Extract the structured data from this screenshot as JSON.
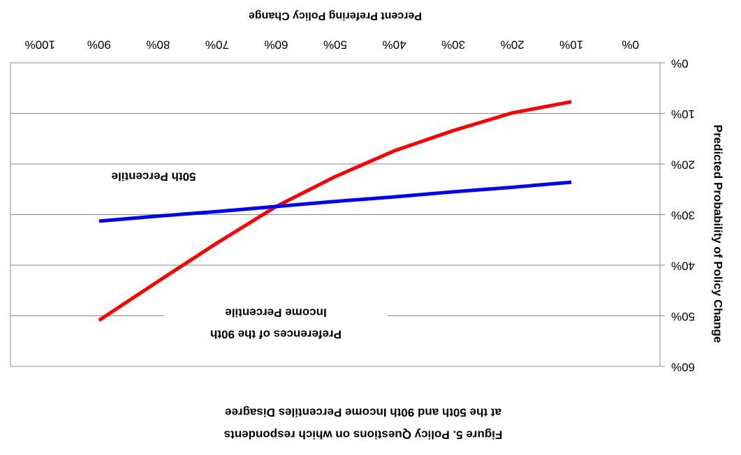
{
  "chart_data": {
    "type": "line",
    "title": [
      "Figure 5.  Policy Questions on which respondents",
      "at the 50th and 90th Income Percentiles Disagree"
    ],
    "x_label": "Percent Prefering Policy Change",
    "y_label": "Predicted Probability of Policy Change",
    "x": [
      10,
      20,
      30,
      40,
      50,
      60,
      70,
      80,
      90
    ],
    "series": [
      {
        "color": "#ff0000",
        "values": [
          7.7,
          9.9,
          13.4,
          17.4,
          22.5,
          28.4,
          35.6,
          43.2,
          50.9
        ]
      },
      {
        "color": "#0000ff",
        "values": [
          23.6,
          24.6,
          25.5,
          26.5,
          27.4,
          28.4,
          29.4,
          30.3,
          31.3
        ]
      }
    ],
    "xlim": [
      -5,
      105
    ],
    "xticks": [
      {
        "value": 0,
        "label": "0%"
      },
      {
        "value": 10,
        "label": "10%"
      },
      {
        "value": 20,
        "label": "20%"
      },
      {
        "value": 30,
        "label": "30%"
      },
      {
        "value": 40,
        "label": "40%"
      },
      {
        "value": 50,
        "label": "50%"
      },
      {
        "value": 60,
        "label": "60%"
      },
      {
        "value": 70,
        "label": "70%"
      },
      {
        "value": 80,
        "label": "80%"
      },
      {
        "value": 90,
        "label": "90%"
      },
      {
        "value": 100,
        "label": "100%"
      }
    ],
    "ylim": [
      0,
      60
    ],
    "yticks": [
      {
        "value": 0,
        "label": "0%"
      },
      {
        "value": 10,
        "label": "10%"
      },
      {
        "value": 20,
        "label": "20%"
      },
      {
        "value": 30,
        "label": "30%"
      },
      {
        "value": 40,
        "label": "40%"
      },
      {
        "value": 50,
        "label": "50%"
      },
      {
        "value": 60,
        "label": "60%"
      }
    ],
    "grid": true,
    "annotations": [
      "50th Percentile",
      [
        "Preferences of the 90th",
        "Income Percentile"
      ]
    ]
  }
}
